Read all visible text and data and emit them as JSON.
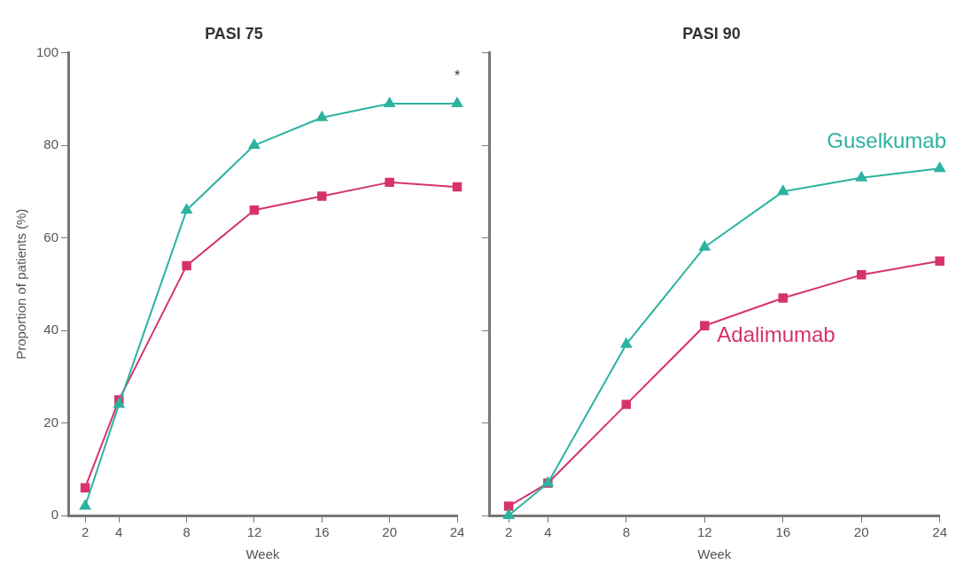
{
  "chart_data": [
    {
      "type": "line",
      "title": "PASI 75",
      "xlabel": "Week",
      "ylabel": "Proportion of patients (%)",
      "x": [
        2,
        4,
        8,
        12,
        16,
        20,
        24
      ],
      "xlim": [
        1,
        24
      ],
      "xticks": [
        2,
        4,
        8,
        12,
        16,
        20,
        24
      ],
      "ylim": [
        0,
        100
      ],
      "yticks": [
        0,
        20,
        40,
        60,
        80,
        100
      ],
      "grid": false,
      "legend": false,
      "line_style": "solid",
      "annotations": [
        "*"
      ],
      "series": [
        {
          "color": "#2bb3a0",
          "marker": "triangle",
          "values": [
            2,
            24,
            66,
            80,
            86,
            89,
            89
          ]
        },
        {
          "color": "#d6336c",
          "marker": "square",
          "values": [
            6,
            25,
            54,
            66,
            69,
            72,
            71
          ]
        }
      ]
    },
    {
      "type": "line",
      "title": "PASI 90",
      "xlabel": "Week",
      "x": [
        2,
        4,
        8,
        12,
        16,
        20,
        24
      ],
      "xlim": [
        1,
        24
      ],
      "xticks": [
        2,
        4,
        8,
        12,
        16,
        20,
        24
      ],
      "ylim": [
        0,
        100
      ],
      "yticks": [
        0,
        20,
        40,
        60,
        80,
        100
      ],
      "tick_labels": "x",
      "grid": false,
      "legend": false,
      "line_style": "solid",
      "series": [
        {
          "name": "Guselkumab",
          "color": "#2bb3a0",
          "marker": "triangle",
          "values": [
            0,
            7,
            37,
            58,
            70,
            73,
            75
          ]
        },
        {
          "name": "Adalimumab",
          "color": "#d6336c",
          "marker": "square",
          "values": [
            2,
            7,
            24,
            41,
            47,
            52,
            55
          ]
        }
      ]
    }
  ]
}
